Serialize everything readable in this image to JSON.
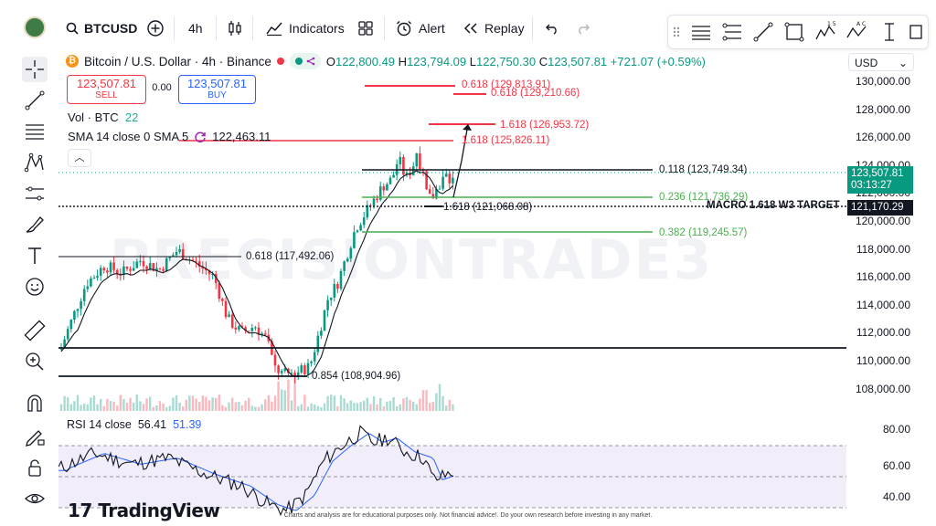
{
  "toolbar": {
    "symbol": "BTCUSD",
    "interval": "4h",
    "indicators_label": "Indicators",
    "alert_label": "Alert",
    "replay_label": "Replay"
  },
  "legend": {
    "title": "Bitcoin / U.S. Dollar · 4h · Binance",
    "o_label": "O",
    "o": "122,800.49",
    "h_label": "H",
    "h": "123,794.09",
    "l_label": "L",
    "l": "122,750.30",
    "c_label": "C",
    "c": "123,507.81",
    "change": "+721.07 (+0.59%)"
  },
  "trade": {
    "sell_price": "123,507.81",
    "sell_label": "SELL",
    "spread": "0.00",
    "buy_price": "123,507.81",
    "buy_label": "BUY"
  },
  "vol": {
    "label": "Vol · BTC",
    "value": "22"
  },
  "sma": {
    "label": "SMA 14 close 0 SMA 5",
    "value": "122,463.11"
  },
  "rsi": {
    "label": "RSI 14 close",
    "value1": "56.41",
    "value2": "51.39"
  },
  "axis": {
    "currency": "USD",
    "ticks": [
      "130,000.00",
      "128,000.00",
      "126,000.00",
      "124,000.00",
      "122,000.00",
      "120,000.00",
      "118,000.00",
      "116,000.00",
      "114,000.00",
      "112,000.00",
      "110,000.00",
      "108,000.00"
    ],
    "rsi_ticks": [
      "80.00",
      "60.00",
      "40.00"
    ],
    "last_price": "123,507.81",
    "countdown": "03:13:27",
    "target_price": "121,170.29"
  },
  "annotations": {
    "a1": "0.618 (129,813.91)",
    "a2": "0.618 (129,210.66)",
    "a3": "1.618 (126,953.72)",
    "a4": "1.618 (125,826.11)",
    "a5": "0.118 (123,749.34)",
    "a6": "0.236 (121,736.29)",
    "a7": "1.618 (121,068.08)",
    "a8": "MACRO 1.618 W3 TARGET",
    "a9": "0.382 (119,245.57)",
    "a10": "0.618 (117,492.06)",
    "a11": "0.854 (108,904.96)"
  },
  "watermark": "PRECISIONTRADE3",
  "branding": "TradingView",
  "disclaimer": "Charts and analysis are for educational purposes only. Not financial advice!. Do your own research before investing in any market.",
  "colors": {
    "up": "#089981",
    "down": "#f23645",
    "sma": "#131722",
    "rsi": "#131722",
    "rsi_ma": "#2962ff",
    "fib_green": "#4caf50",
    "fib_red": "#f23645"
  }
}
